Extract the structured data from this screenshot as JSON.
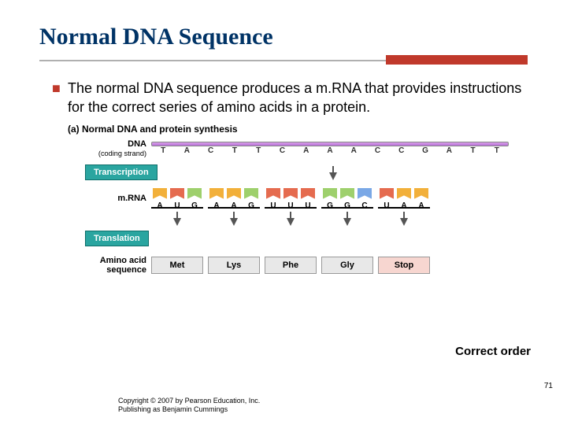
{
  "title": "Normal DNA Sequence",
  "bullet": {
    "marker": "■",
    "text": "The normal DNA sequence produces a m.RNA that provides instructions for the correct series of amino acids in a protein."
  },
  "figure": {
    "caption": "(a) Normal DNA and protein synthesis",
    "dna_label_line1": "DNA",
    "dna_label_line2": "(coding strand)",
    "dna_sequence": [
      "T",
      "A",
      "C",
      "T",
      "T",
      "C",
      "A",
      "A",
      "A",
      "C",
      "C",
      "G",
      "A",
      "T",
      "T"
    ],
    "transcription_label": "Transcription",
    "mrna_label": "m.RNA",
    "codons": [
      {
        "letters": [
          "A",
          "U",
          "G"
        ],
        "colors": [
          "#f2b03a",
          "#e56b4f",
          "#9ed06c"
        ]
      },
      {
        "letters": [
          "A",
          "A",
          "G"
        ],
        "colors": [
          "#f2b03a",
          "#f2b03a",
          "#9ed06c"
        ]
      },
      {
        "letters": [
          "U",
          "U",
          "U"
        ],
        "colors": [
          "#e56b4f",
          "#e56b4f",
          "#e56b4f"
        ]
      },
      {
        "letters": [
          "G",
          "G",
          "C"
        ],
        "colors": [
          "#9ed06c",
          "#9ed06c",
          "#7aa8e6"
        ]
      },
      {
        "letters": [
          "U",
          "A",
          "A"
        ],
        "colors": [
          "#e56b4f",
          "#f2b03a",
          "#f2b03a"
        ]
      }
    ],
    "translation_label": "Translation",
    "aa_label_line1": "Amino acid",
    "aa_label_line2": "sequence",
    "amino_acids": [
      {
        "name": "Met",
        "stop": false
      },
      {
        "name": "Lys",
        "stop": false
      },
      {
        "name": "Phe",
        "stop": false
      },
      {
        "name": "Gly",
        "stop": false
      },
      {
        "name": "Stop",
        "stop": true
      }
    ]
  },
  "correct_order": "Correct order",
  "page_number": "71",
  "copyright_line1": "Copyright © 2007 by Pearson Education, Inc.",
  "copyright_line2": "Publishing as Benjamin Cummings",
  "colors": {
    "title": "#003366",
    "accent": "#c0392b",
    "proc_box": "#2aa5a0"
  }
}
